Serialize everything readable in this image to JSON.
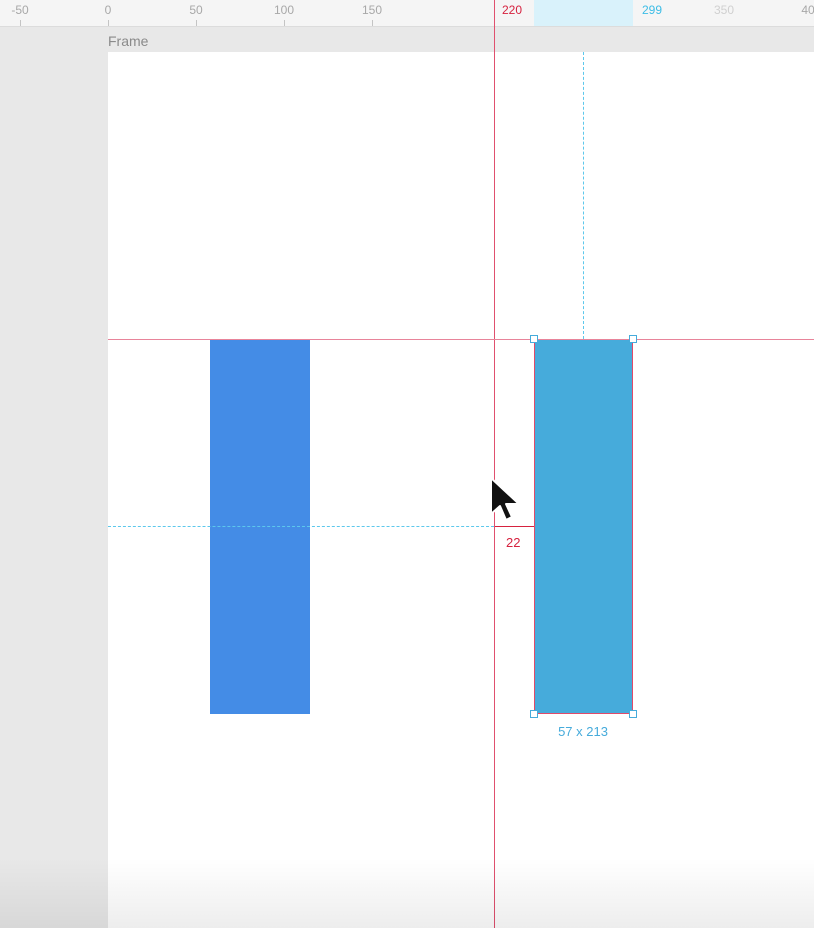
{
  "ruler": {
    "ticks": [
      "-50",
      "0",
      "50",
      "100",
      "150",
      "350",
      "40"
    ],
    "marker_guide": "220",
    "marker_selection": "299"
  },
  "frame": {
    "label": "Frame"
  },
  "selection": {
    "dimensions": "57 x 213"
  },
  "measurement": {
    "spacing": "22"
  },
  "colors": {
    "rect_left": "#448ce6",
    "rect_right": "#46abdb",
    "guide_red": "#d6223f",
    "guide_cyan": "#3dbde6"
  },
  "icons": {
    "cursor": "arrow-cursor-icon"
  }
}
